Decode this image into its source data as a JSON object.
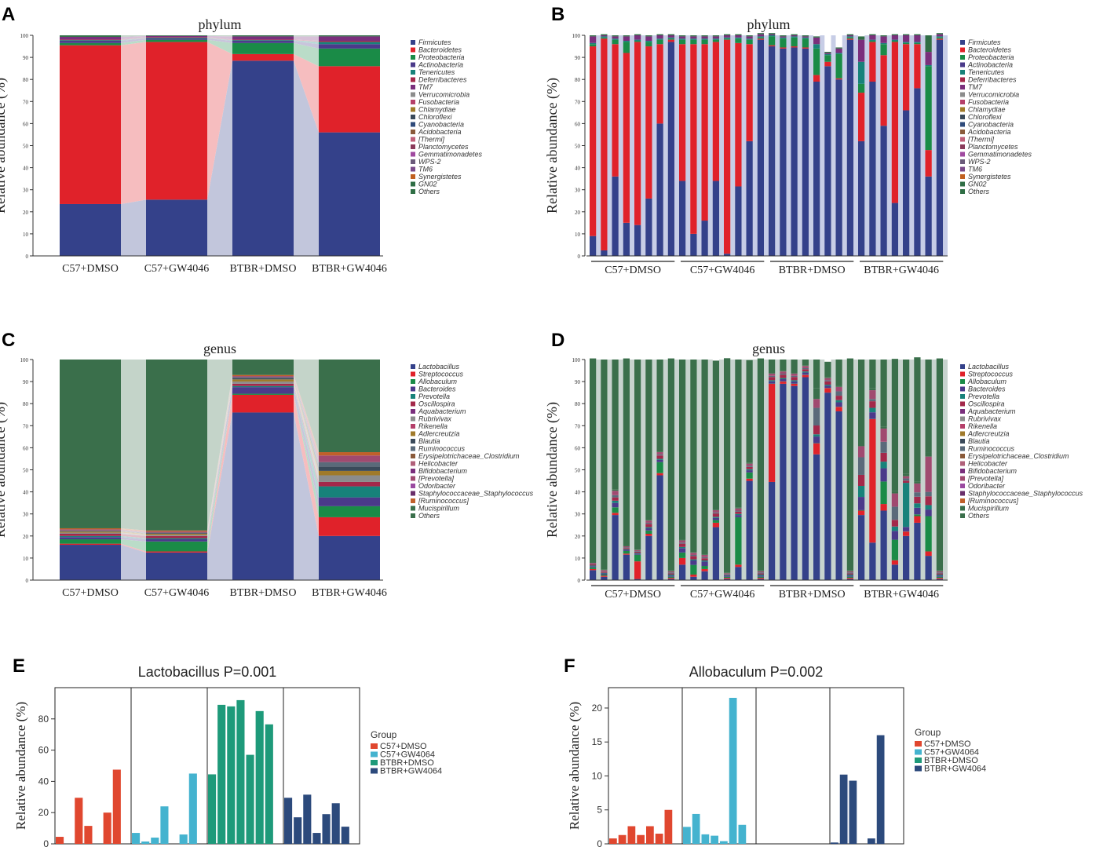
{
  "panel_letters": [
    "A",
    "B",
    "C",
    "D",
    "E",
    "F"
  ],
  "colors": {
    "phylum": [
      "#34418a",
      "#e0222a",
      "#1a8b47",
      "#4a3a8a",
      "#17827a",
      "#a3284a",
      "#7a2f7c",
      "#8c8c8c",
      "#b5406a",
      "#a07a2a",
      "#3a4a5a",
      "#2e4a7a",
      "#8a5a3a",
      "#c0607a",
      "#8a3a5a",
      "#a04aa0",
      "#6a5a7a",
      "#7a4a8a",
      "#c06020",
      "#2f6e45"
    ],
    "genus": [
      "#34418a",
      "#e0222a",
      "#1a8b47",
      "#4a3a8a",
      "#17827a",
      "#a3284a",
      "#7a2f7c",
      "#8c8c8c",
      "#b5406a",
      "#a07a2a",
      "#3a4a5a",
      "#5a6a7a",
      "#8a5a3a",
      "#b0607a",
      "#7a2f7c",
      "#a04a70",
      "#9a4aa0",
      "#6a2f6a",
      "#c0602a",
      "#3a6f4b"
    ],
    "group": [
      "#e0472f",
      "#44b3cf",
      "#1e9a7a",
      "#2c4a7c"
    ]
  },
  "legends": {
    "phylum": [
      "Firmicutes",
      "Bacteroidetes",
      "Proteobacteria",
      "Actinobacteria",
      "Tenericutes",
      "Deferribacteres",
      "TM7",
      "Verrucomicrobia",
      "Fusobacteria",
      "Chlamydiae",
      "Chloroflexi",
      "Cyanobacteria",
      "Acidobacteria",
      "[Thermi]",
      "Planctomycetes",
      "Gemmatimonadetes",
      "WPS-2",
      "TM6",
      "Synergistetes",
      "GN02",
      "Others"
    ],
    "genus": [
      "Lactobacillus",
      "Streptococcus",
      "Allobaculum",
      "Bacteroides",
      "Prevotella",
      "Oscillospira",
      "Aquabacterium",
      "Rubrivivax",
      "Rikenella",
      "Adlercreutzia",
      "Blautia",
      "Ruminococcus",
      "Erysipelotrichaceae_Clostridium",
      "Helicobacter",
      "Bifidobacterium",
      "[Prevotella]",
      "Odoribacter",
      "Staphylococcaceae_Staphylococcus",
      "[Ruminococcus]",
      "Mucispirillum",
      "Others"
    ],
    "group_title": "Group",
    "group": [
      "C57+DMSO",
      "C57+GW4064",
      "BTBR+DMSO",
      "BTBR+GW4064"
    ]
  },
  "chart_data": [
    {
      "id": "A",
      "type": "bar",
      "stacked": true,
      "title": "phylum",
      "ylabel": "Relative abundance (%)",
      "ylim": [
        0,
        100
      ],
      "yticks": [
        0,
        10,
        20,
        30,
        40,
        50,
        60,
        70,
        80,
        90,
        100
      ],
      "categories": [
        "C57+DMSO",
        "C57+GW4046",
        "BTBR+DMSO",
        "BTBR+GW4046"
      ],
      "series": [
        {
          "name": "Firmicutes",
          "values": [
            23.5,
            25.5,
            88.5,
            56
          ]
        },
        {
          "name": "Bacteroidetes",
          "values": [
            72,
            71.5,
            3,
            30
          ]
        },
        {
          "name": "Proteobacteria",
          "values": [
            1,
            1,
            5,
            8
          ]
        },
        {
          "name": "Actinobacteria",
          "values": [
            1,
            0.6,
            1,
            2
          ]
        },
        {
          "name": "Tenericutes",
          "values": [
            0.3,
            0.3,
            0.3,
            1
          ]
        },
        {
          "name": "Deferribacteres",
          "values": [
            0.3,
            0.3,
            0.3,
            0.5
          ]
        },
        {
          "name": "TM7",
          "values": [
            1.2,
            0.5,
            1.4,
            2
          ]
        },
        {
          "name": "Others",
          "values": [
            0.7,
            0.3,
            0.5,
            0.5
          ]
        }
      ]
    },
    {
      "id": "B",
      "type": "bar",
      "stacked": true,
      "title": "phylum",
      "ylabel": "Relative abundance (%)",
      "ylim": [
        0,
        100
      ],
      "yticks": [
        0,
        10,
        20,
        30,
        40,
        50,
        60,
        70,
        80,
        90,
        100
      ],
      "group_labels": [
        "C57+DMSO",
        "C57+GW4046",
        "BTBR+DMSO",
        "BTBR+GW4046"
      ],
      "samples_per_group": 8,
      "series": [
        {
          "name": "Firmicutes",
          "values": [
            9,
            2.5,
            36,
            15,
            14,
            26,
            60,
            97,
            34,
            10,
            16,
            34,
            1,
            31.5,
            52,
            98,
            95,
            94,
            94.5,
            94,
            79,
            86,
            80,
            98,
            52,
            79,
            59,
            24,
            66,
            76,
            36,
            98
          ]
        },
        {
          "name": "Bacteroidetes",
          "values": [
            86,
            96,
            60,
            77,
            83,
            69,
            36,
            1,
            62,
            86,
            80,
            63,
            97,
            65,
            44,
            0.5,
            0.5,
            0.5,
            0.5,
            0.5,
            3,
            2,
            0.5,
            0.5,
            22,
            18,
            32,
            73,
            30,
            20,
            12,
            0.5
          ]
        },
        {
          "name": "Proteobacteria",
          "values": [
            1,
            0.5,
            2,
            5,
            0.5,
            2,
            2,
            0.5,
            2,
            2,
            2,
            1,
            0.5,
            2,
            2,
            0.5,
            4,
            4,
            4,
            4,
            12,
            3,
            11,
            0.5,
            4,
            0.5,
            5,
            0.5,
            0.5,
            0.5,
            38,
            0.5
          ]
        },
        {
          "name": "Tenericutes",
          "values": [
            0.5,
            0.5,
            0.5,
            0.5,
            0.5,
            0.5,
            0.5,
            0.5,
            0.5,
            0.5,
            0.5,
            0.5,
            0.5,
            0.5,
            0.5,
            0.5,
            0.5,
            0.5,
            0.5,
            0.5,
            2,
            0.5,
            0.5,
            0.5,
            10,
            0.5,
            0.5,
            0.5,
            0.5,
            0.5,
            0.5,
            0.5
          ]
        },
        {
          "name": "TM7",
          "values": [
            3,
            0.5,
            1,
            2,
            2,
            2,
            1.5,
            1,
            1,
            1,
            1,
            1,
            1,
            1,
            1,
            1,
            0.5,
            0.5,
            0.5,
            0.5,
            3,
            0.5,
            2,
            0.5,
            10,
            2,
            3,
            2,
            3,
            3,
            6,
            1
          ]
        },
        {
          "name": "Others",
          "values": [
            0.5,
            0.5,
            0.5,
            0.5,
            0.5,
            0.5,
            0.5,
            0.5,
            0.5,
            0.5,
            0.5,
            0.5,
            0.5,
            0.5,
            0.5,
            0.5,
            0.5,
            0.5,
            0.5,
            0.5,
            0.5,
            0.5,
            0.5,
            0.5,
            1.5,
            0.5,
            0.5,
            0.5,
            0.5,
            0.5,
            7.5,
            0.5
          ]
        }
      ]
    },
    {
      "id": "C",
      "type": "bar",
      "stacked": true,
      "title": "genus",
      "ylabel": "Relative abundance (%)",
      "ylim": [
        0,
        100
      ],
      "yticks": [
        0,
        10,
        20,
        30,
        40,
        50,
        60,
        70,
        80,
        90,
        100
      ],
      "categories": [
        "C57+DMSO",
        "C57+GW4046",
        "BTBR+DMSO",
        "BTBR+GW4046"
      ],
      "series": [
        {
          "name": "Lactobacillus",
          "values": [
            16,
            12.5,
            76,
            20
          ]
        },
        {
          "name": "Streptococcus",
          "values": [
            0.5,
            0.5,
            8,
            8.5
          ]
        },
        {
          "name": "Allobaculum",
          "values": [
            2,
            4.5,
            0.5,
            5
          ]
        },
        {
          "name": "Bacteroides",
          "values": [
            1,
            1,
            3,
            4
          ]
        },
        {
          "name": "Prevotella",
          "values": [
            0.5,
            0.5,
            0.5,
            5
          ]
        },
        {
          "name": "Oscillospira",
          "values": [
            1,
            1,
            1,
            2
          ]
        },
        {
          "name": "Rubrivivax",
          "values": [
            0.5,
            0.5,
            1,
            3
          ]
        },
        {
          "name": "Adlercreutzia",
          "values": [
            0.5,
            0.5,
            1,
            2
          ]
        },
        {
          "name": "Blautia",
          "values": [
            0.2,
            0.2,
            0.5,
            2
          ]
        },
        {
          "name": "Ruminococcus",
          "values": [
            0.3,
            0.3,
            0.5,
            2
          ]
        },
        {
          "name": "[Prevotella]",
          "values": [
            0.5,
            0.5,
            0.5,
            3
          ]
        },
        {
          "name": "[Ruminococcus]",
          "values": [
            0.5,
            0.5,
            0.5,
            1.5
          ]
        },
        {
          "name": "Others",
          "values": [
            76.5,
            77.5,
            7,
            42
          ]
        }
      ]
    },
    {
      "id": "D",
      "type": "bar",
      "stacked": true,
      "title": "genus",
      "ylabel": "Relative abundance (%)",
      "ylim": [
        0,
        100
      ],
      "yticks": [
        0,
        10,
        20,
        30,
        40,
        50,
        60,
        70,
        80,
        90,
        100
      ],
      "group_labels": [
        "C57+DMSO",
        "C57+GW4046",
        "BTBR+DMSO",
        "BTBR+GW4046"
      ],
      "samples_per_group": 8,
      "series": [
        {
          "name": "Lactobacillus",
          "values": [
            4.5,
            1.5,
            29.5,
            11.5,
            0.5,
            20,
            47.5,
            0.5,
            7,
            1.5,
            4,
            24,
            0.5,
            6,
            45,
            0.5,
            44.5,
            89,
            88,
            92,
            57,
            85,
            76.5,
            0.5,
            29.5,
            17,
            31.5,
            7,
            20,
            26,
            11,
            0.5
          ]
        },
        {
          "name": "Streptococcus",
          "values": [
            0.5,
            0.5,
            1,
            0.5,
            8,
            1,
            1,
            0.5,
            3,
            1,
            1,
            2,
            0.5,
            1,
            1,
            0.5,
            44.5,
            1,
            1,
            1,
            5,
            2,
            2,
            0.5,
            2,
            56,
            3,
            2,
            2,
            3,
            2,
            0.5
          ]
        },
        {
          "name": "Allobaculum",
          "values": [
            0.8,
            0.5,
            2.5,
            1.2,
            3,
            1.5,
            5,
            0.5,
            2.5,
            4.4,
            1.4,
            1.2,
            0.5,
            21.5,
            2.8,
            0.5,
            0.1,
            0.1,
            0.1,
            0.1,
            0.1,
            0.1,
            0.1,
            0.5,
            0.2,
            0.1,
            10.2,
            9.3,
            0.1,
            0.8,
            16,
            0.5
          ]
        },
        {
          "name": "Bacteroides",
          "values": [
            0.5,
            0.5,
            2,
            0.5,
            0.5,
            1,
            1,
            0.5,
            2,
            2,
            2,
            1,
            0.5,
            1,
            1,
            0.5,
            1,
            1,
            1,
            1,
            3,
            1,
            2,
            0.5,
            6,
            3,
            6,
            4,
            2,
            3,
            3,
            0.5
          ]
        },
        {
          "name": "Prevotella",
          "values": [
            0.3,
            0.3,
            1,
            0.3,
            0.3,
            0.5,
            0.5,
            0.5,
            0.5,
            0.5,
            0.5,
            0.5,
            0.3,
            0.5,
            0.5,
            0.5,
            0.5,
            0.5,
            0.5,
            0.5,
            1,
            0.5,
            1,
            0.5,
            5,
            2,
            3,
            2,
            20,
            2,
            2,
            0.5
          ]
        },
        {
          "name": "Oscillospira",
          "values": [
            0.5,
            0.5,
            1.5,
            0.5,
            0.5,
            1.5,
            1.5,
            0.5,
            1.5,
            1.5,
            1,
            1.5,
            0.3,
            1,
            1,
            0.5,
            1.5,
            1.5,
            1.5,
            1,
            4,
            1.5,
            2,
            0.5,
            5,
            3,
            4,
            3,
            1,
            3,
            4,
            0.5
          ]
        },
        {
          "name": "Ruminococcus",
          "values": [
            0.2,
            0.2,
            1,
            0.3,
            0.3,
            0.5,
            0.5,
            0.5,
            0.5,
            0.5,
            0.5,
            0.5,
            0.2,
            0.5,
            0.5,
            0.5,
            0.5,
            0.5,
            0.5,
            0.5,
            8,
            0.5,
            2,
            0.5,
            8,
            1,
            5,
            6,
            1,
            2,
            2,
            0.5
          ]
        },
        {
          "name": "[Prevotella]",
          "values": [
            0.5,
            0.5,
            2,
            0.5,
            0.5,
            1,
            1,
            0.5,
            1,
            1,
            1,
            1,
            0.3,
            1,
            1,
            0.5,
            1,
            1,
            1,
            1,
            4,
            1,
            2,
            0.5,
            5,
            4,
            6,
            6,
            1,
            4,
            16,
            0.5
          ]
        },
        {
          "name": "Mucispirillum",
          "values": [
            0.2,
            0.2,
            0.5,
            0.2,
            0.2,
            0.3,
            0.3,
            0.5,
            0.3,
            0.3,
            0.3,
            0.3,
            0.2,
            0.3,
            0.3,
            0.5,
            0.3,
            0.3,
            0.3,
            0.3,
            5,
            0.3,
            0.5,
            0.5,
            3,
            1,
            1,
            1,
            1,
            1,
            2,
            0.5
          ]
        },
        {
          "name": "Others",
          "values": [
            92.5,
            95.3,
            59,
            85,
            86.2,
            72.7,
            41.7,
            96,
            81.7,
            87.3,
            88.3,
            67.5,
            97.3,
            67.2,
            46.7,
            96,
            6.1,
            5.1,
            6.1,
            2.6,
            12.9,
            7.1,
            11.9,
            96,
            36.3,
            12.9,
            30.3,
            60,
            51.9,
            56.2,
            42,
            96
          ]
        }
      ]
    },
    {
      "id": "E",
      "type": "bar",
      "title": "Lactobacillus P=0.001",
      "ylabel": "Relative abundance (%)",
      "ylim": [
        0,
        100
      ],
      "yticks": [
        0,
        20,
        40,
        60,
        80
      ],
      "groups": [
        "C57+DMSO",
        "C57+GW4064",
        "BTBR+DMSO",
        "BTBR+GW4064"
      ],
      "values": [
        4.5,
        0,
        29.5,
        11.5,
        0,
        20,
        47.5,
        0,
        7,
        1.5,
        4,
        24,
        0,
        6,
        45,
        0,
        44.5,
        89,
        88,
        92,
        57,
        85,
        76.5,
        0,
        29.5,
        17,
        31.5,
        7,
        19,
        26,
        11,
        0
      ]
    },
    {
      "id": "F",
      "type": "bar",
      "title": "Allobaculum P=0.002",
      "ylabel": "Relative abundance (%)",
      "ylim": [
        0,
        23
      ],
      "yticks": [
        0,
        5,
        10,
        15,
        20
      ],
      "groups": [
        "C57+DMSO",
        "C57+GW4064",
        "BTBR+DMSO",
        "BTBR+GW4064"
      ],
      "values": [
        0.8,
        1.3,
        2.6,
        1.3,
        2.6,
        1.5,
        5,
        0,
        2.5,
        4.4,
        1.4,
        1.2,
        0.4,
        21.5,
        2.8,
        0,
        0,
        0,
        0,
        0,
        0,
        0,
        0,
        0,
        0.2,
        10.2,
        9.3,
        0,
        0.8,
        16,
        0,
        0
      ]
    }
  ]
}
